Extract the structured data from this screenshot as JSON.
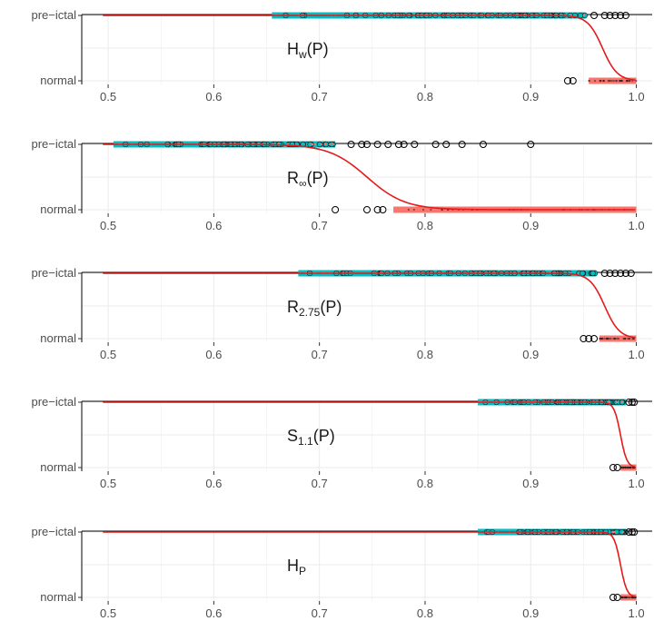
{
  "colors": {
    "normal": "#F8766D",
    "preictal": "#00BFC4",
    "curve": "#E41A1C",
    "open_point": "#000000",
    "grid": "#EBEBEB",
    "axis": "#333333"
  },
  "chart_data": [
    {
      "type": "scatter",
      "title": "H_w(P)",
      "title_main": "H",
      "title_sub": "w",
      "title_suffix": "(P)",
      "ylabels": [
        "pre−ictal",
        "normal"
      ],
      "xlim": [
        0.475,
        1.015
      ],
      "xticks": [
        0.5,
        0.6,
        0.7,
        0.8,
        0.9,
        1.0
      ],
      "xticklabels": [
        "0.5",
        "0.6",
        "0.7",
        "0.8",
        "0.9",
        "1.0"
      ],
      "preictal_range": [
        0.655,
        0.952
      ],
      "preictal_outliers": [
        0.96,
        0.97,
        0.975,
        0.98,
        0.985,
        0.99
      ],
      "normal_range": [
        0.955,
        1.0
      ],
      "normal_outliers": [
        0.935,
        0.94
      ],
      "fit": {
        "midpoint": 0.968,
        "scale": 0.007
      }
    },
    {
      "type": "scatter",
      "title": "R_∞(P)",
      "title_main": "R",
      "title_sub": "∞",
      "title_suffix": "(P)",
      "ylabels": [
        "pre−ictal",
        "normal"
      ],
      "xlim": [
        0.475,
        1.015
      ],
      "xticks": [
        0.5,
        0.6,
        0.7,
        0.8,
        0.9,
        1.0
      ],
      "xticklabels": [
        "0.5",
        "0.6",
        "0.7",
        "0.8",
        "0.9",
        "1.0"
      ],
      "preictal_range": [
        0.505,
        0.715
      ],
      "preictal_outliers": [
        0.73,
        0.74,
        0.745,
        0.755,
        0.765,
        0.775,
        0.78,
        0.79,
        0.81,
        0.82,
        0.835,
        0.855,
        0.9
      ],
      "normal_range": [
        0.77,
        1.0
      ],
      "normal_outliers": [
        0.715,
        0.745,
        0.755,
        0.76
      ],
      "fit": {
        "midpoint": 0.745,
        "scale": 0.018
      }
    },
    {
      "type": "scatter",
      "title": "R_2.75(P)",
      "title_main": "R",
      "title_sub": "2.75",
      "title_suffix": "(P)",
      "ylabels": [
        "pre−ictal",
        "normal"
      ],
      "xlim": [
        0.475,
        1.015
      ],
      "xticks": [
        0.5,
        0.6,
        0.7,
        0.8,
        0.9,
        1.0
      ],
      "xticklabels": [
        "0.5",
        "0.6",
        "0.7",
        "0.8",
        "0.9",
        "1.0"
      ],
      "preictal_range": [
        0.68,
        0.962
      ],
      "preictal_outliers": [
        0.97,
        0.975,
        0.98,
        0.985,
        0.99,
        0.995
      ],
      "normal_range": [
        0.965,
        1.0
      ],
      "normal_outliers": [
        0.95,
        0.955,
        0.96
      ],
      "fit": {
        "midpoint": 0.97,
        "scale": 0.007
      }
    },
    {
      "type": "scatter",
      "title": "S_1.1(P)",
      "title_main": "S",
      "title_sub": "1.1",
      "title_suffix": "(P)",
      "ylabels": [
        "pre−ictal",
        "normal"
      ],
      "xlim": [
        0.475,
        1.015
      ],
      "xticks": [
        0.5,
        0.6,
        0.7,
        0.8,
        0.9,
        1.0
      ],
      "xticklabels": [
        "0.5",
        "0.6",
        "0.7",
        "0.8",
        "0.9",
        "1.0"
      ],
      "preictal_range": [
        0.85,
        0.99
      ],
      "preictal_outliers": [
        0.993,
        0.996,
        0.998
      ],
      "normal_range": [
        0.985,
        1.0
      ],
      "normal_outliers": [
        0.978,
        0.982
      ],
      "fit": {
        "midpoint": 0.985,
        "scale": 0.003
      }
    },
    {
      "type": "scatter",
      "title": "H_P",
      "title_main": "H",
      "title_sub": "P",
      "title_suffix": "",
      "ylabels": [
        "pre−ictal",
        "normal"
      ],
      "xlim": [
        0.475,
        1.015
      ],
      "xticks": [
        0.5,
        0.6,
        0.7,
        0.8,
        0.9,
        1.0
      ],
      "xticklabels": [
        "0.5",
        "0.6",
        "0.7",
        "0.8",
        "0.9",
        "1.0"
      ],
      "preictal_range": [
        0.85,
        0.99
      ],
      "preictal_outliers": [
        0.993,
        0.996,
        0.998
      ],
      "normal_range": [
        0.985,
        1.0
      ],
      "normal_outliers": [
        0.978,
        0.982
      ],
      "fit": {
        "midpoint": 0.985,
        "scale": 0.003
      }
    }
  ]
}
